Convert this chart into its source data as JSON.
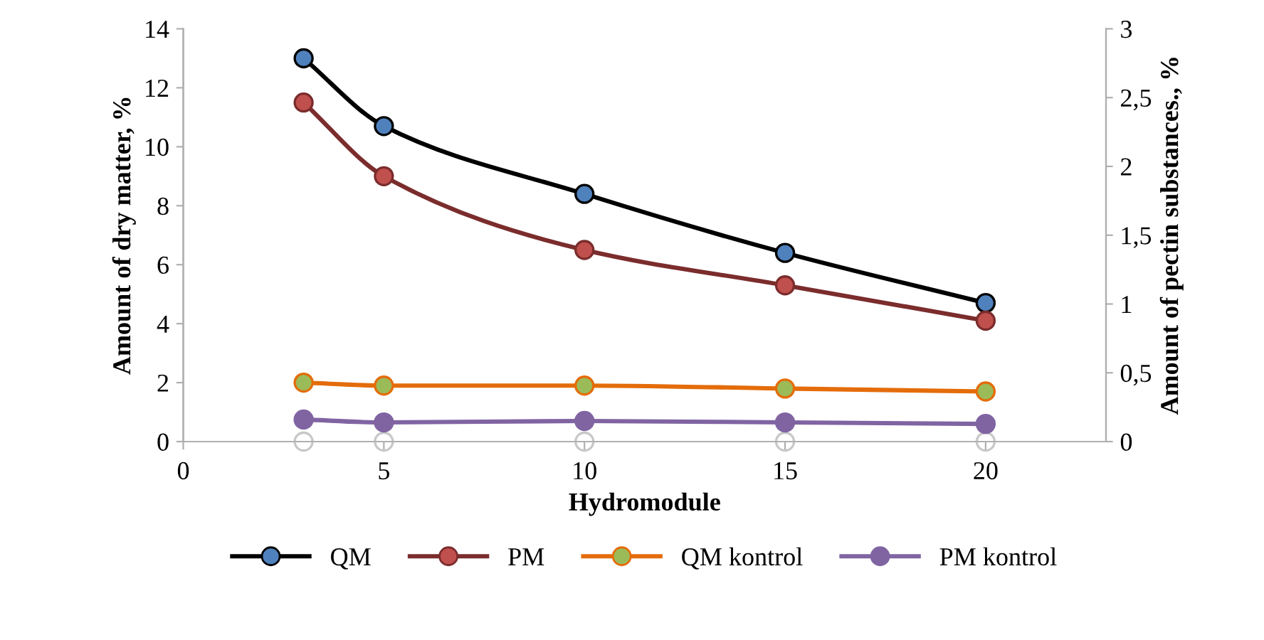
{
  "chart_data": {
    "type": "line",
    "xlabel": "Hydromodule",
    "ylabel": "Amount of dry matter, %",
    "y2label": "Amount of pectin substances., %",
    "x": [
      3,
      5,
      10,
      15,
      20
    ],
    "series": [
      {
        "name": "QM",
        "color": "#000000",
        "colors": [
          "#4f81bd",
          "#4f81bd",
          "#4f81bd",
          "#4f81bd",
          "#4f81bd"
        ],
        "values": [
          13.0,
          10.7,
          8.4,
          6.4,
          4.7
        ]
      },
      {
        "name": "PM",
        "color": "#7b2c2c",
        "colors": [
          "#c0504d",
          "#c0504d",
          "#c0504d",
          "#c0504d",
          "#c0504d"
        ],
        "values": [
          11.5,
          9.0,
          6.5,
          5.3,
          4.1
        ]
      },
      {
        "name": "QM kontrol",
        "color": "#e46c0a",
        "colors": [
          "#9bbb59",
          "#9bbb59",
          "#9bbb59",
          "#9bbb59",
          "#9bbb59"
        ],
        "values": [
          2.0,
          1.9,
          1.9,
          1.8,
          1.7
        ]
      },
      {
        "name": "PM kontrol",
        "color": "#8064a2",
        "colors": [
          "#8064a2",
          "#8064a2",
          "#8064a2",
          "#8064a2",
          "#8064a2"
        ],
        "values": [
          0.75,
          0.65,
          0.7,
          0.65,
          0.6
        ]
      },
      {
        "type": "scatter",
        "color": "#c8c8c8",
        "values": [
          0,
          0,
          0,
          0,
          0
        ]
      }
    ],
    "xlim": [
      0,
      23
    ],
    "xticks": [
      0,
      5,
      10,
      15,
      20
    ],
    "ylim": [
      0,
      14
    ],
    "yticks": [
      0,
      2,
      4,
      6,
      8,
      10,
      12,
      14
    ],
    "y2lim": [
      0,
      3
    ],
    "y2ticks": [
      0,
      {
        "value": 0.5,
        "label": "0,5"
      },
      1,
      {
        "value": 1.5,
        "label": "1,5"
      },
      2,
      {
        "value": 2.5,
        "label": "2,5"
      },
      3
    ],
    "marker": "circle",
    "line_style": "solid",
    "grid": false,
    "legend": "bottom"
  }
}
